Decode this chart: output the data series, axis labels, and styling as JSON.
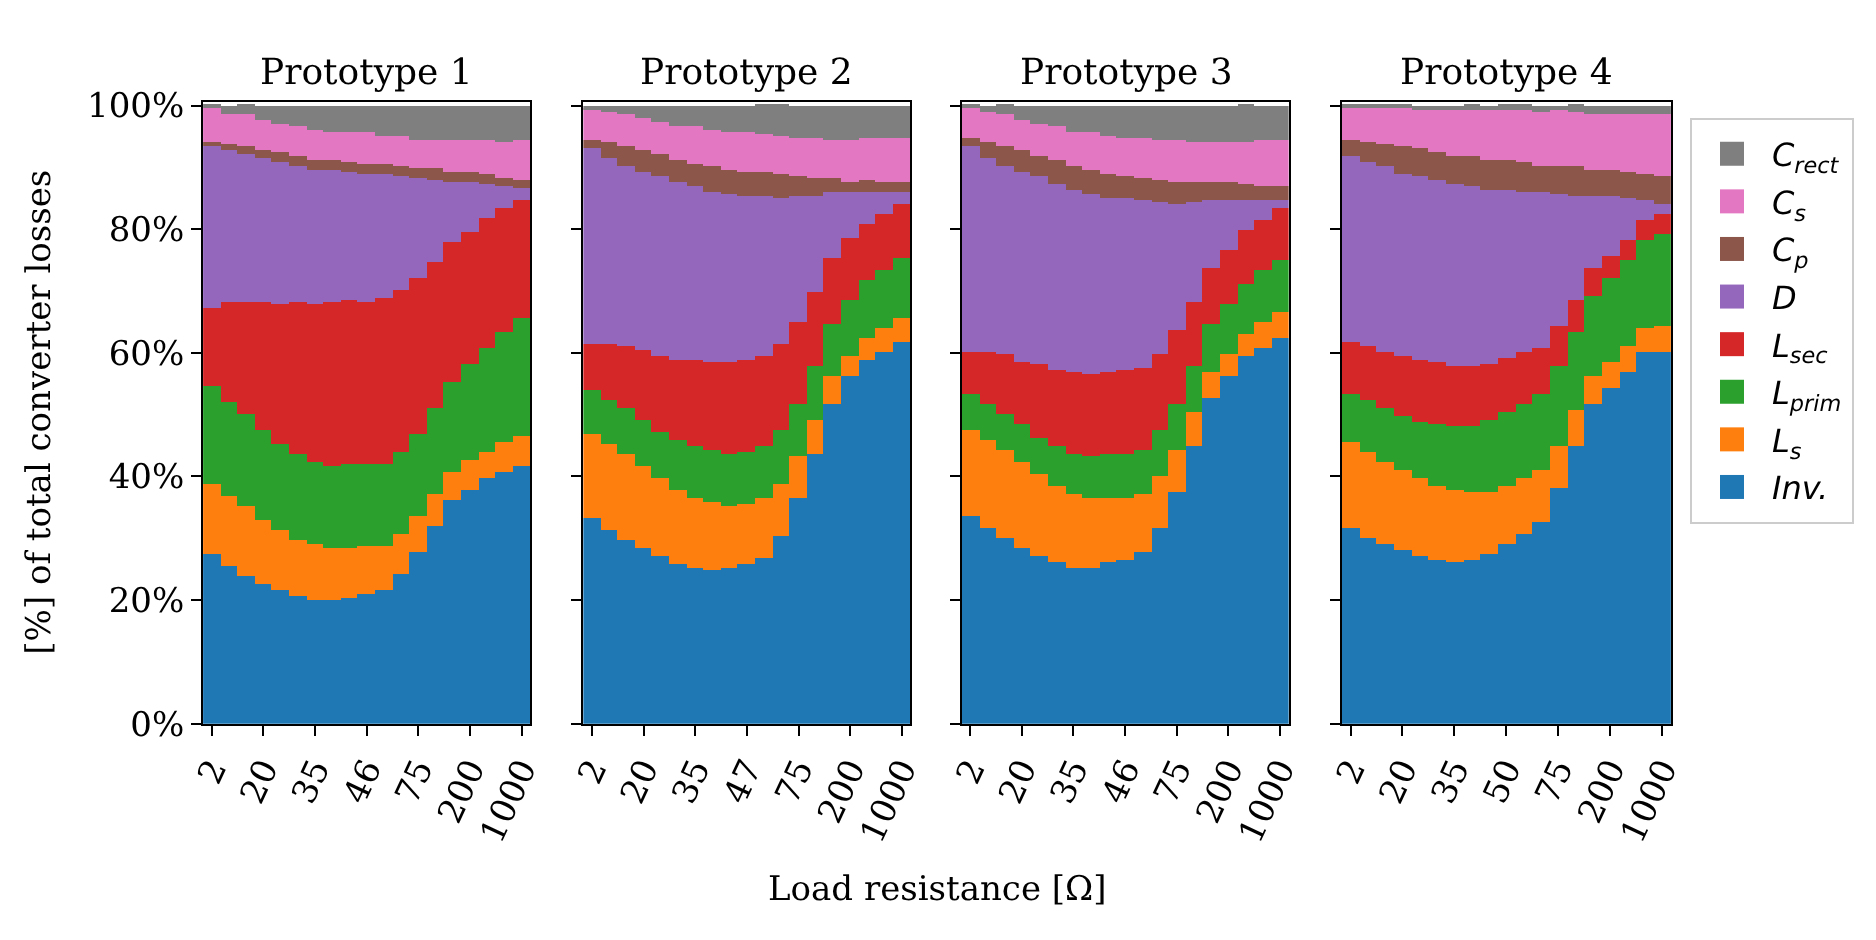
{
  "chart_data": [
    {
      "type": "bar",
      "stacked": true,
      "title": "Prototype 1",
      "ylabel": "[%] of total converter losses",
      "legend": "right",
      "categories": [
        "2",
        null,
        null,
        "20",
        null,
        null,
        "35",
        null,
        null,
        "46",
        null,
        null,
        "75",
        null,
        null,
        "200",
        null,
        null,
        "1000"
      ],
      "ylim": [
        0,
        100.5
      ],
      "yticks": [
        {
          "value": 0,
          "label": "0%"
        },
        {
          "value": 20,
          "label": "20%"
        },
        {
          "value": 40,
          "label": "40%"
        },
        {
          "value": 60,
          "label": "60%"
        },
        {
          "value": 80,
          "label": "80%"
        },
        {
          "value": 100,
          "label": "100%"
        }
      ],
      "series": [
        {
          "name": "Inv.",
          "color": "#1f77b4",
          "values": [
            27.3,
            25.4,
            23.9,
            22.6,
            21.4,
            20.5,
            19.9,
            19.9,
            20.4,
            20.8,
            21.4,
            24.2,
            27.6,
            32.0,
            36.0,
            37.8,
            39.7,
            40.6,
            41.6
          ]
        },
        {
          "name": "L$_{s}$",
          "color": "#ff7f0e",
          "values": [
            11.5,
            11.5,
            11.2,
            10.2,
            9.9,
            9.3,
            9.0,
            8.4,
            7.9,
            7.8,
            7.4,
            6.5,
            5.9,
            5.0,
            4.7,
            4.7,
            4.3,
            5.0,
            5.0
          ]
        },
        {
          "name": "L$_{prim}$",
          "color": "#2ca02c",
          "values": [
            15.8,
            15.2,
            14.9,
            14.6,
            14.0,
            13.7,
            13.3,
            13.3,
            13.7,
            13.3,
            13.3,
            13.3,
            13.3,
            14.0,
            14.6,
            15.5,
            16.8,
            17.7,
            18.9
          ]
        },
        {
          "name": "L$_{sec}$",
          "color": "#d62728",
          "values": [
            12.7,
            16.1,
            18.3,
            20.8,
            22.6,
            24.5,
            25.7,
            26.4,
            26.4,
            26.4,
            26.7,
            26.1,
            25.1,
            23.6,
            22.6,
            21.4,
            20.8,
            19.9,
            19.2
          ]
        },
        {
          "name": "D",
          "color": "#9467bd",
          "values": [
            26.1,
            24.5,
            23.9,
            23.1,
            23.0,
            22.3,
            21.7,
            21.4,
            20.9,
            20.7,
            19.9,
            18.4,
            16.2,
            13.4,
            9.7,
            8.1,
            5.6,
            3.7,
            1.9
          ]
        },
        {
          "name": "C$_{p}$",
          "color": "#8c564b",
          "values": [
            0.6,
            1.0,
            1.2,
            1.4,
            1.5,
            1.5,
            1.6,
            1.6,
            1.6,
            1.6,
            1.7,
            1.7,
            1.7,
            1.7,
            1.7,
            1.6,
            1.5,
            1.3,
            1.2
          ]
        },
        {
          "name": "C$_{s}$",
          "color": "#e377c2",
          "values": [
            5.6,
            5.0,
            5.0,
            5.0,
            4.7,
            4.7,
            4.7,
            4.7,
            4.7,
            4.9,
            4.7,
            4.7,
            4.7,
            4.7,
            5.0,
            5.3,
            5.6,
            5.9,
            6.5
          ]
        },
        {
          "name": "C$_{rect}$",
          "color": "#7f7f7f",
          "values": [
            0.4,
            1.0,
            1.7,
            2.3,
            2.9,
            3.5,
            3.8,
            4.1,
            4.4,
            4.4,
            4.7,
            5.0,
            5.3,
            5.6,
            5.6,
            5.6,
            5.6,
            5.6,
            5.6
          ]
        }
      ]
    },
    {
      "type": "bar",
      "stacked": true,
      "title": "Prototype 2",
      "xlabel": "Load resistance [Ω]",
      "legend": "right",
      "tick_labels": "x",
      "categories": [
        "2",
        null,
        null,
        "20",
        null,
        null,
        "35",
        null,
        null,
        "47",
        null,
        null,
        "75",
        null,
        null,
        "200",
        null,
        null,
        "1000"
      ],
      "ylim": [
        0,
        100.5
      ],
      "yticks": [
        {
          "value": 0,
          "label": null
        },
        {
          "value": 20,
          "label": null
        },
        {
          "value": 40,
          "label": null
        },
        {
          "value": 60,
          "label": null
        },
        {
          "value": 80,
          "label": null
        },
        {
          "value": 100,
          "label": null
        }
      ],
      "series": [
        {
          "name": "Inv.",
          "color": "#1f77b4",
          "values": [
            33.3,
            31.3,
            29.8,
            28.2,
            27.0,
            25.7,
            25.1,
            24.8,
            25.1,
            25.7,
            26.7,
            30.4,
            36.3,
            43.7,
            51.8,
            56.1,
            58.7,
            60.2,
            61.7
          ]
        },
        {
          "name": "L$_{s}$",
          "color": "#ff7f0e",
          "values": [
            13.5,
            14.0,
            13.7,
            13.3,
            12.7,
            12.1,
            11.5,
            10.9,
            10.2,
            9.9,
            9.6,
            8.4,
            6.8,
            5.3,
            4.3,
            3.4,
            3.6,
            3.7,
            4.0
          ]
        },
        {
          "name": "L$_{prim}$",
          "color": "#2ca02c",
          "values": [
            7.1,
            7.1,
            7.4,
            7.4,
            7.4,
            8.1,
            8.1,
            8.4,
            8.4,
            8.4,
            8.4,
            8.7,
            8.7,
            8.7,
            8.4,
            9.0,
            9.3,
            9.3,
            9.6
          ]
        },
        {
          "name": "L$_{sec}$",
          "color": "#d62728",
          "values": [
            7.4,
            9.0,
            10.2,
            11.5,
            12.4,
            13.0,
            14.0,
            14.3,
            14.9,
            14.9,
            14.6,
            14.0,
            13.0,
            12.1,
            10.9,
            9.9,
            9.3,
            9.3,
            8.7
          ]
        },
        {
          "name": "D",
          "color": "#9467bd",
          "values": [
            31.6,
            30.1,
            29.2,
            28.9,
            28.9,
            28.5,
            28.2,
            27.6,
            27.0,
            26.4,
            26.1,
            23.6,
            20.4,
            15.5,
            10.5,
            7.4,
            5.0,
            3.4,
            1.9
          ]
        },
        {
          "name": "C$_{p}$",
          "color": "#8c564b",
          "values": [
            1.6,
            2.5,
            3.1,
            3.4,
            3.7,
            3.7,
            3.7,
            4.0,
            4.0,
            4.0,
            3.7,
            3.7,
            3.2,
            2.8,
            2.2,
            1.9,
            1.9,
            1.6,
            1.6
          ]
        },
        {
          "name": "C$_{s}$",
          "color": "#e377c2",
          "values": [
            5.0,
            5.0,
            5.3,
            5.3,
            5.3,
            5.6,
            5.9,
            5.9,
            5.9,
            6.2,
            6.2,
            6.2,
            6.2,
            6.5,
            6.2,
            6.8,
            6.8,
            7.1,
            7.1
          ]
        },
        {
          "name": "C$_{rect}$",
          "color": "#7f7f7f",
          "values": [
            0.4,
            1.0,
            1.3,
            2.0,
            2.6,
            3.2,
            3.5,
            4.1,
            4.4,
            4.4,
            4.8,
            5.1,
            5.4,
            5.4,
            5.7,
            5.4,
            5.4,
            5.4,
            5.4
          ]
        }
      ]
    },
    {
      "type": "bar",
      "stacked": true,
      "title": "Prototype 3",
      "legend": "right",
      "tick_labels": "x",
      "categories": [
        "2",
        null,
        null,
        "20",
        null,
        null,
        "35",
        null,
        null,
        "46",
        null,
        null,
        "75",
        null,
        null,
        "200",
        null,
        null,
        "1000"
      ],
      "ylim": [
        0,
        100.5
      ],
      "yticks": [
        {
          "value": 0,
          "label": null
        },
        {
          "value": 20,
          "label": null
        },
        {
          "value": 40,
          "label": null
        },
        {
          "value": 60,
          "label": null
        },
        {
          "value": 80,
          "label": null
        },
        {
          "value": 100,
          "label": null
        }
      ],
      "series": [
        {
          "name": "Inv.",
          "color": "#1f77b4",
          "values": [
            33.5,
            31.6,
            30.1,
            28.5,
            27.0,
            26.1,
            25.2,
            25.2,
            26.1,
            26.4,
            27.6,
            31.6,
            37.5,
            44.7,
            52.7,
            56.1,
            59.3,
            60.8,
            62.4
          ]
        },
        {
          "name": "L$_{s}$",
          "color": "#ff7f0e",
          "values": [
            14.0,
            14.3,
            14.0,
            13.7,
            13.3,
            12.4,
            12.0,
            11.1,
            10.5,
            10.2,
            9.6,
            8.4,
            6.8,
            5.6,
            4.0,
            3.7,
            3.7,
            4.0,
            4.0
          ]
        },
        {
          "name": "L$_{prim}$",
          "color": "#2ca02c",
          "values": [
            5.9,
            5.9,
            5.9,
            6.2,
            5.9,
            6.5,
            6.5,
            6.8,
            6.8,
            7.1,
            7.1,
            7.4,
            7.4,
            7.4,
            7.8,
            8.1,
            8.1,
            8.4,
            8.7
          ]
        },
        {
          "name": "L$_{sec}$",
          "color": "#d62728",
          "values": [
            6.5,
            8.4,
            9.6,
            10.2,
            11.8,
            12.1,
            13.0,
            13.3,
            13.3,
            13.3,
            13.3,
            12.4,
            11.8,
            10.5,
            9.3,
            8.7,
            8.7,
            8.1,
            8.1
          ]
        },
        {
          "name": "D",
          "color": "#9467bd",
          "values": [
            33.5,
            31.3,
            30.7,
            30.7,
            30.4,
            30.1,
            29.5,
            29.2,
            28.2,
            27.9,
            27.0,
            24.5,
            20.5,
            16.1,
            10.9,
            8.1,
            5.0,
            3.4,
            1.6
          ]
        },
        {
          "name": "C$_{p}$",
          "color": "#8c564b",
          "values": [
            1.2,
            2.5,
            3.1,
            3.4,
            3.4,
            4.0,
            4.0,
            4.0,
            4.0,
            3.7,
            3.7,
            3.7,
            3.7,
            3.1,
            2.8,
            2.8,
            2.5,
            2.2,
            2.2
          ]
        },
        {
          "name": "C$_{s}$",
          "color": "#e377c2",
          "values": [
            5.0,
            5.0,
            5.0,
            5.0,
            5.3,
            5.3,
            5.6,
            5.9,
            6.2,
            6.2,
            6.5,
            6.5,
            6.5,
            6.5,
            6.5,
            6.5,
            6.8,
            7.4,
            7.4
          ]
        },
        {
          "name": "C$_{rect}$",
          "color": "#7f7f7f",
          "values": [
            0.4,
            1.0,
            1.7,
            2.3,
            2.9,
            3.5,
            4.1,
            4.4,
            4.8,
            5.1,
            5.1,
            5.4,
            5.7,
            6.0,
            6.0,
            6.0,
            6.0,
            5.7,
            5.6
          ]
        }
      ]
    },
    {
      "type": "bar",
      "stacked": true,
      "title": "Prototype 4",
      "legend": "right",
      "tick_labels": "x",
      "categories": [
        "2",
        null,
        null,
        "20",
        null,
        null,
        "35",
        null,
        null,
        "50",
        null,
        null,
        "75",
        null,
        null,
        "200",
        null,
        null,
        "1000"
      ],
      "ylim": [
        0,
        100.5
      ],
      "yticks": [
        {
          "value": 0,
          "label": null
        },
        {
          "value": 20,
          "label": null
        },
        {
          "value": 40,
          "label": null
        },
        {
          "value": 60,
          "label": null
        },
        {
          "value": 80,
          "label": null
        },
        {
          "value": 100,
          "label": null
        }
      ],
      "series": [
        {
          "name": "Inv.",
          "color": "#1f77b4",
          "values": [
            31.6,
            30.1,
            28.9,
            27.9,
            27.0,
            26.4,
            26.1,
            26.4,
            27.3,
            28.9,
            30.7,
            32.6,
            38.2,
            44.7,
            51.5,
            54.3,
            56.8,
            59.9,
            59.9
          ]
        },
        {
          "name": "L$_{s}$",
          "color": "#ff7f0e",
          "values": [
            14.0,
            13.7,
            13.3,
            13.0,
            12.7,
            12.1,
            11.5,
            10.9,
            10.2,
            9.6,
            9.0,
            8.4,
            6.8,
            5.9,
            4.7,
            4.0,
            4.3,
            4.0,
            4.3
          ]
        },
        {
          "name": "L$_{prim}$",
          "color": "#2ca02c",
          "values": [
            7.8,
            8.4,
            8.7,
            8.7,
            9.0,
            9.9,
            10.5,
            10.9,
            11.5,
            11.8,
            12.1,
            12.4,
            12.7,
            12.7,
            13.0,
            13.7,
            13.7,
            14.3,
            14.9
          ]
        },
        {
          "name": "L$_{sec}$",
          "color": "#d62728",
          "values": [
            8.4,
            8.7,
            9.3,
            9.9,
            10.2,
            9.9,
            9.6,
            9.6,
            9.0,
            8.7,
            8.1,
            7.4,
            6.5,
            5.3,
            4.3,
            3.7,
            3.4,
            3.1,
            3.4
          ]
        },
        {
          "name": "D",
          "color": "#9467bd",
          "values": [
            30.1,
            29.8,
            29.8,
            29.5,
            29.5,
            29.5,
            29.5,
            29.2,
            28.2,
            27.3,
            26.1,
            25.1,
            21.4,
            16.8,
            11.8,
            9.6,
            6.8,
            3.4,
            1.6
          ]
        },
        {
          "name": "C$_{p}$",
          "color": "#8c564b",
          "values": [
            2.5,
            3.4,
            3.7,
            4.3,
            4.7,
            4.7,
            4.7,
            4.7,
            5.0,
            4.7,
            4.7,
            4.3,
            4.7,
            4.7,
            4.3,
            4.3,
            4.3,
            4.3,
            4.3
          ]
        },
        {
          "name": "C$_{s}$",
          "color": "#e377c2",
          "values": [
            5.4,
            5.7,
            6.0,
            6.3,
            6.3,
            6.9,
            7.5,
            7.5,
            7.9,
            8.2,
            8.5,
            8.8,
            8.8,
            8.8,
            9.1,
            9.1,
            9.4,
            9.7,
            10.3
          ]
        },
        {
          "name": "C$_{rect}$",
          "color": "#7f7f7f",
          "values": [
            0.2,
            0.3,
            0.3,
            0.3,
            0.6,
            0.6,
            0.6,
            0.9,
            0.9,
            0.9,
            0.9,
            0.9,
            0.9,
            1.2,
            1.2,
            1.2,
            1.2,
            1.2,
            1.2
          ]
        }
      ]
    }
  ]
}
